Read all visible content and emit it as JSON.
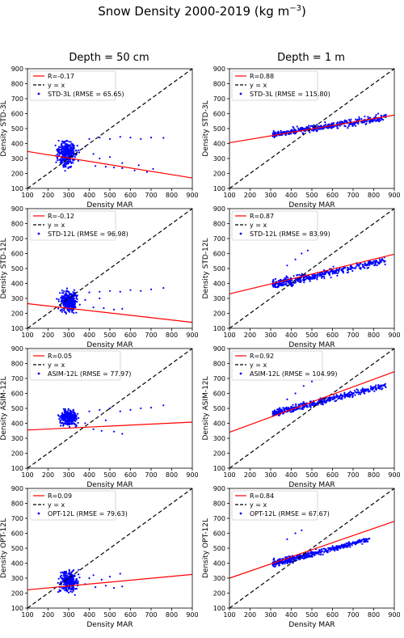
{
  "figure": {
    "title": "Snow Density 2000-2019 (kg m$^{-3}$)",
    "title_main": "Snow Density 2000-2019 (kg m",
    "title_sup": "−3",
    "title_end": ")"
  },
  "columns": [
    "Depth = 50 cm",
    "Depth = 1 m"
  ],
  "colors": {
    "points": "#0000ff",
    "regression": "#ff0000",
    "identity": "#000000"
  },
  "chart_data": [
    {
      "type": "scatter",
      "row": 0,
      "col": 0,
      "xlabel": "Density MAR",
      "ylabel": "Density STD-3L",
      "xlim": [
        100,
        900
      ],
      "ylim": [
        100,
        900
      ],
      "ticks": [
        100,
        200,
        300,
        400,
        500,
        600,
        700,
        800,
        900
      ],
      "legend": {
        "position": "top-left",
        "entries": [
          "R=-0.17",
          "y = x",
          "STD-3L (RMSE = 65.65)"
        ]
      },
      "regression": {
        "x": [
          100,
          900
        ],
        "y": [
          347,
          170
        ]
      },
      "cluster": {
        "x_range": [
          200,
          360
        ],
        "y_range": [
          200,
          490
        ],
        "center": [
          290,
          330
        ]
      },
      "outliers": [
        [
          400,
          430
        ],
        [
          450,
          440
        ],
        [
          500,
          430
        ],
        [
          550,
          445
        ],
        [
          600,
          440
        ],
        [
          650,
          430
        ],
        [
          700,
          440
        ],
        [
          760,
          438
        ],
        [
          430,
          250
        ],
        [
          480,
          245
        ],
        [
          520,
          240
        ],
        [
          560,
          235
        ],
        [
          620,
          220
        ],
        [
          680,
          210
        ],
        [
          450,
          300
        ],
        [
          500,
          310
        ],
        [
          380,
          380
        ],
        [
          420,
          330
        ],
        [
          560,
          270
        ],
        [
          640,
          255
        ],
        [
          710,
          230
        ]
      ]
    },
    {
      "type": "scatter",
      "row": 0,
      "col": 1,
      "xlabel": "Density MAR",
      "ylabel": "Density STD-3L",
      "xlim": [
        100,
        900
      ],
      "ylim": [
        100,
        900
      ],
      "ticks": [
        100,
        200,
        300,
        400,
        500,
        600,
        700,
        800,
        900
      ],
      "legend": {
        "position": "top-left",
        "entries": [
          "R=0.88",
          "y = x",
          "STD-3L (RMSE = 115.80)"
        ]
      },
      "regression": {
        "x": [
          100,
          900
        ],
        "y": [
          405,
          590
        ]
      },
      "band": {
        "x_range": [
          310,
          860
        ],
        "y_at_min": [
          430,
          490
        ],
        "y_at_max": [
          530,
          620
        ]
      },
      "outliers": []
    },
    {
      "type": "scatter",
      "row": 1,
      "col": 0,
      "xlabel": "Density MAR",
      "ylabel": "Density STD-12L",
      "xlim": [
        100,
        900
      ],
      "ylim": [
        100,
        900
      ],
      "ticks": [
        100,
        200,
        300,
        400,
        500,
        600,
        700,
        800,
        900
      ],
      "legend": {
        "position": "top-left",
        "entries": [
          "R=-0.12",
          "y = x",
          "STD-12L (RMSE = 96.98)"
        ]
      },
      "regression": {
        "x": [
          100,
          900
        ],
        "y": [
          265,
          140
        ]
      },
      "cluster": {
        "x_range": [
          200,
          360
        ],
        "y_range": [
          165,
          420
        ],
        "center": [
          300,
          280
        ]
      },
      "outliers": [
        [
          400,
          340
        ],
        [
          450,
          345
        ],
        [
          500,
          350
        ],
        [
          550,
          345
        ],
        [
          600,
          355
        ],
        [
          650,
          350
        ],
        [
          700,
          360
        ],
        [
          760,
          370
        ],
        [
          420,
          240
        ],
        [
          470,
          235
        ],
        [
          520,
          225
        ],
        [
          560,
          230
        ],
        [
          450,
          300
        ],
        [
          380,
          290
        ]
      ]
    },
    {
      "type": "scatter",
      "row": 1,
      "col": 1,
      "xlabel": "Density MAR",
      "ylabel": "Density STD-12L",
      "xlim": [
        100,
        900
      ],
      "ylim": [
        100,
        900
      ],
      "ticks": [
        100,
        200,
        300,
        400,
        500,
        600,
        700,
        800,
        900
      ],
      "legend": {
        "position": "top-left",
        "entries": [
          "R=0.87",
          "y = x",
          "STD-12L (RMSE = 83.99)"
        ]
      },
      "regression": {
        "x": [
          100,
          900
        ],
        "y": [
          330,
          595
        ]
      },
      "band": {
        "x_range": [
          310,
          860
        ],
        "y_at_min": [
          340,
          440
        ],
        "y_at_max": [
          520,
          590
        ]
      },
      "outliers": [
        [
          420,
          560
        ],
        [
          450,
          600
        ],
        [
          480,
          620
        ],
        [
          380,
          520
        ]
      ]
    },
    {
      "type": "scatter",
      "row": 2,
      "col": 0,
      "xlabel": "Density MAR",
      "ylabel": "Density ASIM-12L",
      "xlim": [
        100,
        900
      ],
      "ylim": [
        100,
        900
      ],
      "ticks": [
        100,
        200,
        300,
        400,
        500,
        600,
        700,
        800,
        900
      ],
      "legend": {
        "position": "top-left",
        "entries": [
          "R=0.05",
          "y = x",
          "ASIM-12L (RMSE = 77.97)"
        ]
      },
      "regression": {
        "x": [
          100,
          900
        ],
        "y": [
          355,
          408
        ]
      },
      "cluster": {
        "x_range": [
          220,
          370
        ],
        "y_range": [
          330,
          510
        ],
        "center": [
          300,
          440
        ]
      },
      "outliers": [
        [
          400,
          480
        ],
        [
          450,
          490
        ],
        [
          500,
          500
        ],
        [
          550,
          480
        ],
        [
          600,
          490
        ],
        [
          650,
          500
        ],
        [
          700,
          505
        ],
        [
          760,
          520
        ],
        [
          420,
          360
        ],
        [
          460,
          350
        ],
        [
          520,
          345
        ],
        [
          560,
          330
        ],
        [
          480,
          420
        ],
        [
          380,
          400
        ]
      ]
    },
    {
      "type": "scatter",
      "row": 2,
      "col": 1,
      "xlabel": "Density MAR",
      "ylabel": "Density ASIM-12L",
      "xlim": [
        100,
        900
      ],
      "ylim": [
        100,
        900
      ],
      "ticks": [
        100,
        200,
        300,
        400,
        500,
        600,
        700,
        800,
        900
      ],
      "legend": {
        "position": "top-left",
        "entries": [
          "R=0.92",
          "y = x",
          "ASIM-12L (RMSE = 104.99)"
        ]
      },
      "regression": {
        "x": [
          100,
          900
        ],
        "y": [
          340,
          745
        ]
      },
      "band": {
        "x_range": [
          310,
          860
        ],
        "y_at_min": [
          430,
          500
        ],
        "y_at_max": [
          620,
          690
        ]
      },
      "outliers": [
        [
          420,
          600
        ],
        [
          460,
          650
        ],
        [
          500,
          680
        ],
        [
          380,
          560
        ]
      ]
    },
    {
      "type": "scatter",
      "row": 3,
      "col": 0,
      "xlabel": "Density MAR",
      "ylabel": "Density OPT-12L",
      "xlim": [
        100,
        900
      ],
      "ylim": [
        100,
        900
      ],
      "ticks": [
        100,
        200,
        300,
        400,
        500,
        600,
        700,
        800,
        900
      ],
      "legend": {
        "position": "top-left",
        "entries": [
          "R=0.09",
          "y = x",
          "OPT-12L (RMSE = 79.63)"
        ]
      },
      "regression": {
        "x": [
          100,
          900
        ],
        "y": [
          222,
          325
        ]
      },
      "cluster": {
        "x_range": [
          210,
          360
        ],
        "y_range": [
          170,
          410
        ],
        "center": [
          300,
          280
        ]
      },
      "outliers": [
        [
          400,
          300
        ],
        [
          420,
          320
        ],
        [
          460,
          290
        ],
        [
          500,
          310
        ],
        [
          550,
          330
        ],
        [
          380,
          260
        ],
        [
          430,
          240
        ],
        [
          480,
          250
        ],
        [
          520,
          235
        ],
        [
          560,
          245
        ]
      ]
    },
    {
      "type": "scatter",
      "row": 3,
      "col": 1,
      "xlabel": "Density MAR",
      "ylabel": "Density OPT-12L",
      "xlim": [
        100,
        900
      ],
      "ylim": [
        100,
        900
      ],
      "ticks": [
        100,
        200,
        300,
        400,
        500,
        600,
        700,
        800,
        900
      ],
      "legend": {
        "position": "top-left",
        "entries": [
          "R=0.84",
          "y = x",
          "OPT-12L (RMSE = 67.67)"
        ]
      },
      "regression": {
        "x": [
          100,
          900
        ],
        "y": [
          300,
          680
        ]
      },
      "band": {
        "x_range": [
          310,
          780
        ],
        "y_at_min": [
          350,
          440
        ],
        "y_at_max": [
          540,
          580
        ]
      },
      "outliers": [
        [
          420,
          600
        ],
        [
          450,
          620
        ],
        [
          380,
          560
        ]
      ]
    }
  ]
}
